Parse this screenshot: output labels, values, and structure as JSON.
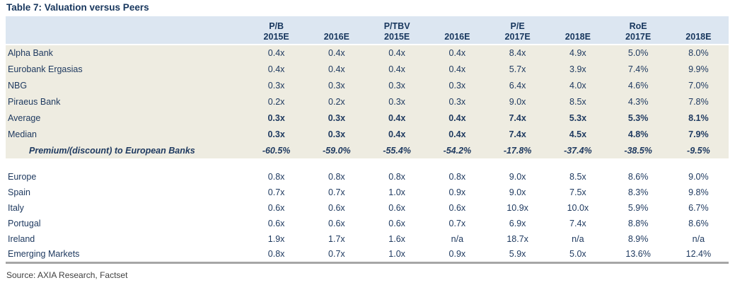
{
  "title": "Table 7: Valuation versus Peers",
  "source": "Source: AXIA Research, Factset",
  "colors": {
    "header_bg": "#dce6f1",
    "greek_section_bg": "#eeece1",
    "text_navy": "#1f3a60",
    "title_navy": "#17365d",
    "bottom_border_gray": "#a6a6a6",
    "source_text_gray": "#404040"
  },
  "table": {
    "groups": [
      "P/B",
      "P/TBV",
      "P/E",
      "RoE"
    ],
    "years": [
      "2015E",
      "2016E",
      "2015E",
      "2016E",
      "2017E",
      "2018E",
      "2017E",
      "2018E"
    ],
    "greek_section": [
      {
        "label": "Alpha Bank",
        "style": "normal",
        "values": [
          "0.4x",
          "0.4x",
          "0.4x",
          "0.4x",
          "8.4x",
          "4.9x",
          "5.0%",
          "8.0%"
        ]
      },
      {
        "label": "Eurobank Ergasias",
        "style": "normal",
        "values": [
          "0.4x",
          "0.4x",
          "0.4x",
          "0.4x",
          "5.7x",
          "3.9x",
          "7.4%",
          "9.9%"
        ]
      },
      {
        "label": "NBG",
        "style": "normal",
        "values": [
          "0.3x",
          "0.3x",
          "0.3x",
          "0.3x",
          "6.4x",
          "4.0x",
          "4.6%",
          "7.0%"
        ]
      },
      {
        "label": "Piraeus Bank",
        "style": "normal",
        "values": [
          "0.2x",
          "0.2x",
          "0.3x",
          "0.3x",
          "9.0x",
          "8.5x",
          "4.3%",
          "7.8%"
        ]
      },
      {
        "label": "Average",
        "style": "bold-values",
        "values": [
          "0.3x",
          "0.3x",
          "0.4x",
          "0.4x",
          "7.4x",
          "5.3x",
          "5.3%",
          "8.1%"
        ]
      },
      {
        "label": "Median",
        "style": "bold-values",
        "values": [
          "0.3x",
          "0.3x",
          "0.4x",
          "0.4x",
          "7.4x",
          "4.5x",
          "4.8%",
          "7.9%"
        ]
      },
      {
        "label": "Premium/(discount) to European Banks",
        "style": "premium",
        "values": [
          "-60.5%",
          "-59.0%",
          "-55.4%",
          "-54.2%",
          "-17.8%",
          "-37.4%",
          "-38.5%",
          "-9.5%"
        ]
      }
    ],
    "peer_section": [
      {
        "label": "Europe",
        "style": "normal",
        "values": [
          "0.8x",
          "0.8x",
          "0.8x",
          "0.8x",
          "9.0x",
          "8.5x",
          "8.6%",
          "9.0%"
        ]
      },
      {
        "label": "Spain",
        "style": "normal",
        "values": [
          "0.7x",
          "0.7x",
          "1.0x",
          "0.9x",
          "9.0x",
          "7.5x",
          "8.3%",
          "9.8%"
        ]
      },
      {
        "label": "Italy",
        "style": "normal",
        "values": [
          "0.6x",
          "0.6x",
          "0.6x",
          "0.6x",
          "10.9x",
          "10.0x",
          "5.9%",
          "6.7%"
        ]
      },
      {
        "label": "Portugal",
        "style": "normal",
        "values": [
          "0.6x",
          "0.6x",
          "0.6x",
          "0.7x",
          "6.9x",
          "7.4x",
          "8.8%",
          "8.6%"
        ]
      },
      {
        "label": "Ireland",
        "style": "normal",
        "values": [
          "1.9x",
          "1.7x",
          "1.6x",
          "n/a",
          "18.7x",
          "n/a",
          "8.9%",
          "n/a"
        ]
      },
      {
        "label": "Emerging Markets",
        "style": "normal",
        "values": [
          "0.8x",
          "0.7x",
          "1.0x",
          "0.9x",
          "5.9x",
          "5.0x",
          "13.6%",
          "12.4%"
        ]
      }
    ]
  }
}
